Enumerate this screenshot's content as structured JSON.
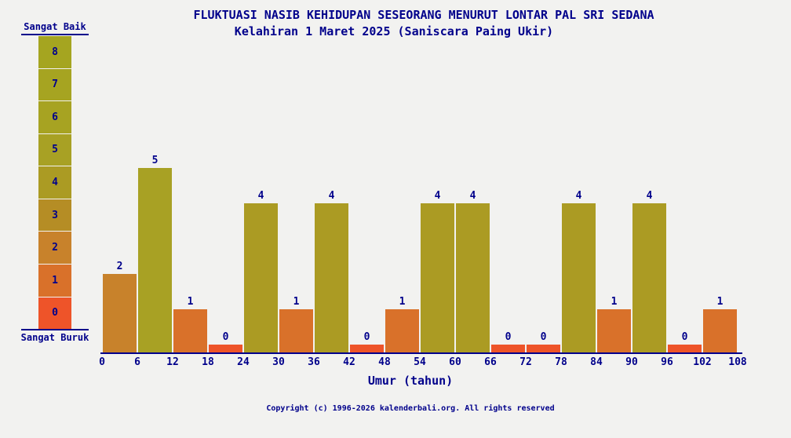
{
  "header": {
    "title": "FLUKTUASI NASIB KEHIDUPAN SESEORANG MENURUT LONTAR PAL SRI SEDANA",
    "subtitle": "Kelahiran 1 Maret 2025 (Saniscara Paing Ukir)"
  },
  "legend": {
    "top_label": "Sangat Baik",
    "bottom_label": "Sangat Buruk",
    "levels": [
      {
        "value": "8",
        "color": "#a5a520"
      },
      {
        "value": "7",
        "color": "#a6a421"
      },
      {
        "value": "6",
        "color": "#a7a322"
      },
      {
        "value": "5",
        "color": "#a8a124"
      },
      {
        "value": "4",
        "color": "#ab9b23"
      },
      {
        "value": "3",
        "color": "#b58d25"
      },
      {
        "value": "2",
        "color": "#c8822b"
      },
      {
        "value": "1",
        "color": "#d9712a"
      },
      {
        "value": "0",
        "color": "#ee5429"
      }
    ]
  },
  "chart_data": {
    "type": "bar",
    "title": "FLUKTUASI NASIB KEHIDUPAN SESEORANG MENURUT LONTAR PAL SRI SEDANA",
    "subtitle": "Kelahiran 1 Maret 2025 (Saniscara Paing Ukir)",
    "xlabel": "Umur (tahun)",
    "ylabel": "",
    "ylim": [
      0,
      8
    ],
    "grid": false,
    "legend_position": "left",
    "scale_labels": {
      "max": "Sangat Baik",
      "min": "Sangat Buruk"
    },
    "x_ticks": [
      0,
      6,
      12,
      18,
      24,
      30,
      36,
      42,
      48,
      54,
      60,
      66,
      72,
      78,
      84,
      90,
      96,
      102,
      108
    ],
    "categories": [
      "0-6",
      "6-12",
      "12-18",
      "18-24",
      "24-30",
      "30-36",
      "36-42",
      "42-48",
      "48-54",
      "54-60",
      "60-66",
      "66-72",
      "72-78",
      "78-84",
      "84-90",
      "90-96",
      "96-102",
      "102-108"
    ],
    "values": [
      2,
      5,
      1,
      0,
      4,
      1,
      4,
      0,
      1,
      4,
      4,
      0,
      0,
      4,
      1,
      4,
      0,
      1
    ],
    "value_colors": {
      "0": "#ee5429",
      "1": "#d9712a",
      "2": "#c8822b",
      "3": "#b58d25",
      "4": "#ab9b23",
      "5": "#a8a124",
      "6": "#a7a322",
      "7": "#a6a421",
      "8": "#a5a520"
    }
  },
  "footer": {
    "copyright": "Copyright (c) 1996-2026 kalenderbali.org. All rights reserved"
  },
  "colors": {
    "background": "#f2f2f0",
    "text": "#00008b",
    "axis": "#00008b"
  }
}
